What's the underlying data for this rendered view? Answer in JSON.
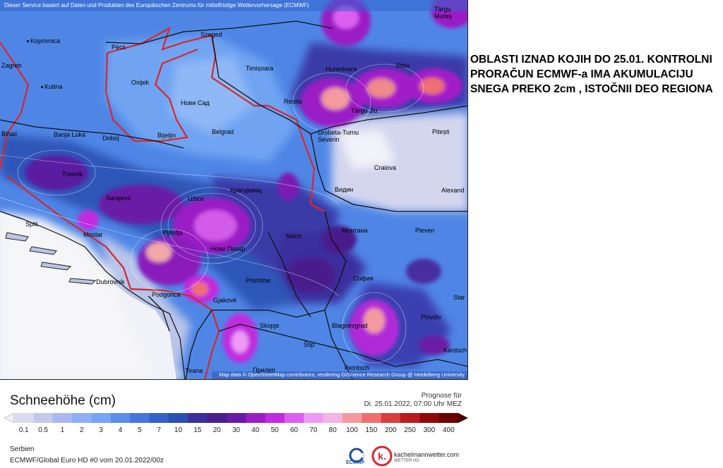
{
  "header": {
    "service_note": "Dieser Service basiert auf Daten und Produkten des Europäischen Zentrums für mittelfristige Wettervorhersage (ECMWF)"
  },
  "attribution": "Map data © OpenStreetMap contributors, rendering GIScience Research Group @ Heidelberg University",
  "annotation": "OBLASTI IZNAD KOJIH DO 25.01. KONTROLNI PRORAČUN ECMWF-a IMA AKUMULACIJU SNEGA PREKO 2cm , ISTOČNII DEO REGIONA",
  "legend": {
    "title": "Schneehöhe (cm)",
    "forecast_label": "Prognose für",
    "forecast_time": "Di. 25.01.2022, 07:00 Uhr MEZ",
    "ticks": [
      "0.1",
      "0.5",
      "1",
      "2",
      "3",
      "4",
      "5",
      "7",
      "10",
      "15",
      "20",
      "30",
      "40",
      "50",
      "60",
      "70",
      "80",
      "100",
      "150",
      "200",
      "250",
      "300",
      "400"
    ],
    "colors": [
      "#dcdcf0",
      "#c4c8ee",
      "#a9b8f2",
      "#8fb0f5",
      "#75a6f4",
      "#5b8eea",
      "#4577dc",
      "#3462c9",
      "#2b4fb0",
      "#3b2f9a",
      "#4a1f8c",
      "#6a1aa6",
      "#9a1fc4",
      "#c22be0",
      "#dd5ef0",
      "#ee9af5",
      "#f3b4e6",
      "#f49a9e",
      "#ef7070",
      "#d84040",
      "#b71d1d",
      "#8e0a0a",
      "#6a0000"
    ]
  },
  "footer": {
    "region": "Serbien",
    "model": "ECMWF/Global Euro HD #0 vom  20.01.2022/00z",
    "brand": "kachelmannwetter.com",
    "brand_sub": "WETTER HD",
    "ecmwf": "ECMWF"
  },
  "cities": [
    {
      "name": "Koprivnica"
    },
    {
      "name": "Pécs"
    },
    {
      "name": "Szeged"
    },
    {
      "name": "Zagreb"
    },
    {
      "name": "Kutina"
    },
    {
      "name": "Osijek"
    },
    {
      "name": "Нови Сад"
    },
    {
      "name": "Timișoara"
    },
    {
      "name": "Hunedoara"
    },
    {
      "name": "Reșița"
    },
    {
      "name": "Banja Luka"
    },
    {
      "name": "Doboj"
    },
    {
      "name": "Bijeljin"
    },
    {
      "name": "Belgrad"
    },
    {
      "name": "Drobeta-Turnu Severin"
    },
    {
      "name": "Travnik"
    },
    {
      "name": "Sarajevo"
    },
    {
      "name": "Užice"
    },
    {
      "name": "Крагујевац"
    },
    {
      "name": "Craiova"
    },
    {
      "name": "Split"
    },
    {
      "name": "Mostar"
    },
    {
      "name": "Pljevlja"
    },
    {
      "name": "Нови Пазар"
    },
    {
      "name": "Nisch"
    },
    {
      "name": "Видин"
    },
    {
      "name": "Монтана"
    },
    {
      "name": "Pleven"
    },
    {
      "name": "Dubrovnik"
    },
    {
      "name": "Podgorica"
    },
    {
      "name": "Prishtine"
    },
    {
      "name": "София"
    },
    {
      "name": "Gjakovë"
    },
    {
      "name": "Skopje"
    },
    {
      "name": "Blagoevgrad"
    },
    {
      "name": "Plovdiv"
    },
    {
      "name": "Štip"
    },
    {
      "name": "Kardsch"
    },
    {
      "name": "Tirana"
    },
    {
      "name": "Прилеп"
    },
    {
      "name": "Petritsch"
    },
    {
      "name": "Sibiu"
    },
    {
      "name": "Târgu Jiu"
    },
    {
      "name": "Pitești"
    },
    {
      "name": "Alexand"
    },
    {
      "name": "Târgu Mureș"
    },
    {
      "name": "Bihać"
    },
    {
      "name": "Star"
    }
  ]
}
